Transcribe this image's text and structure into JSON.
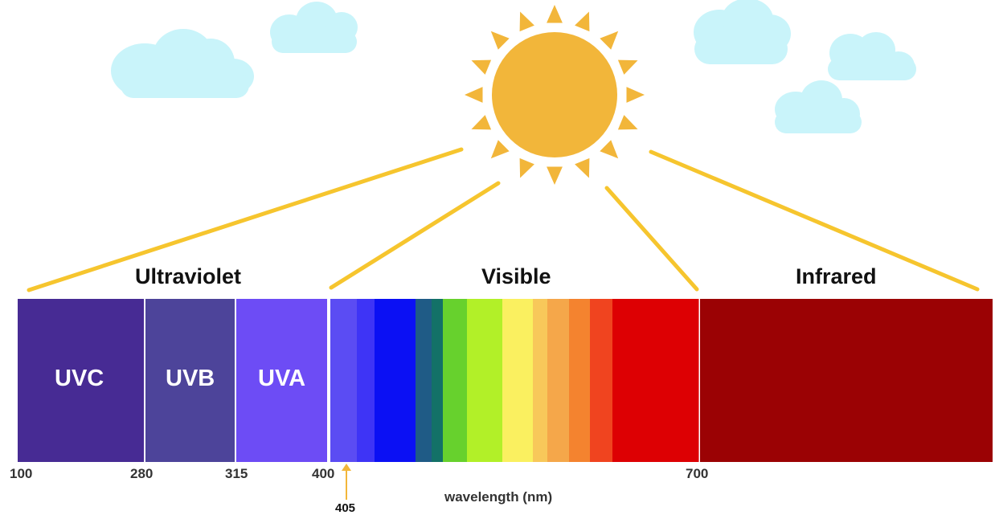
{
  "sections": {
    "ultraviolet": "Ultraviolet",
    "visible": "Visible",
    "infrared": "Infrared"
  },
  "uv_bands": [
    "UVC",
    "UVB",
    "UVA"
  ],
  "ticks": [
    "100",
    "280",
    "315",
    "400",
    "700"
  ],
  "marker": "405",
  "axis_label": "wavelength (nm)",
  "colors": {
    "sun": "#F2B63A",
    "sun_rays": "#F2B63A",
    "connector_lines": "#F6C52E",
    "clouds": "#C9F4FA",
    "uvc": "#472B94",
    "uvb": "#4D449A",
    "uva": "#6D4CF5",
    "infrared": "#9B0204",
    "visible_stripes": [
      "#5B4CF3",
      "#3E34F6",
      "#0B10F4",
      "#1F5B86",
      "#137167",
      "#67D12D",
      "#B2F028",
      "#FAF060",
      "#F8C85A",
      "#F5A74A",
      "#F4832F",
      "#F0441F",
      "#DD0003"
    ]
  }
}
